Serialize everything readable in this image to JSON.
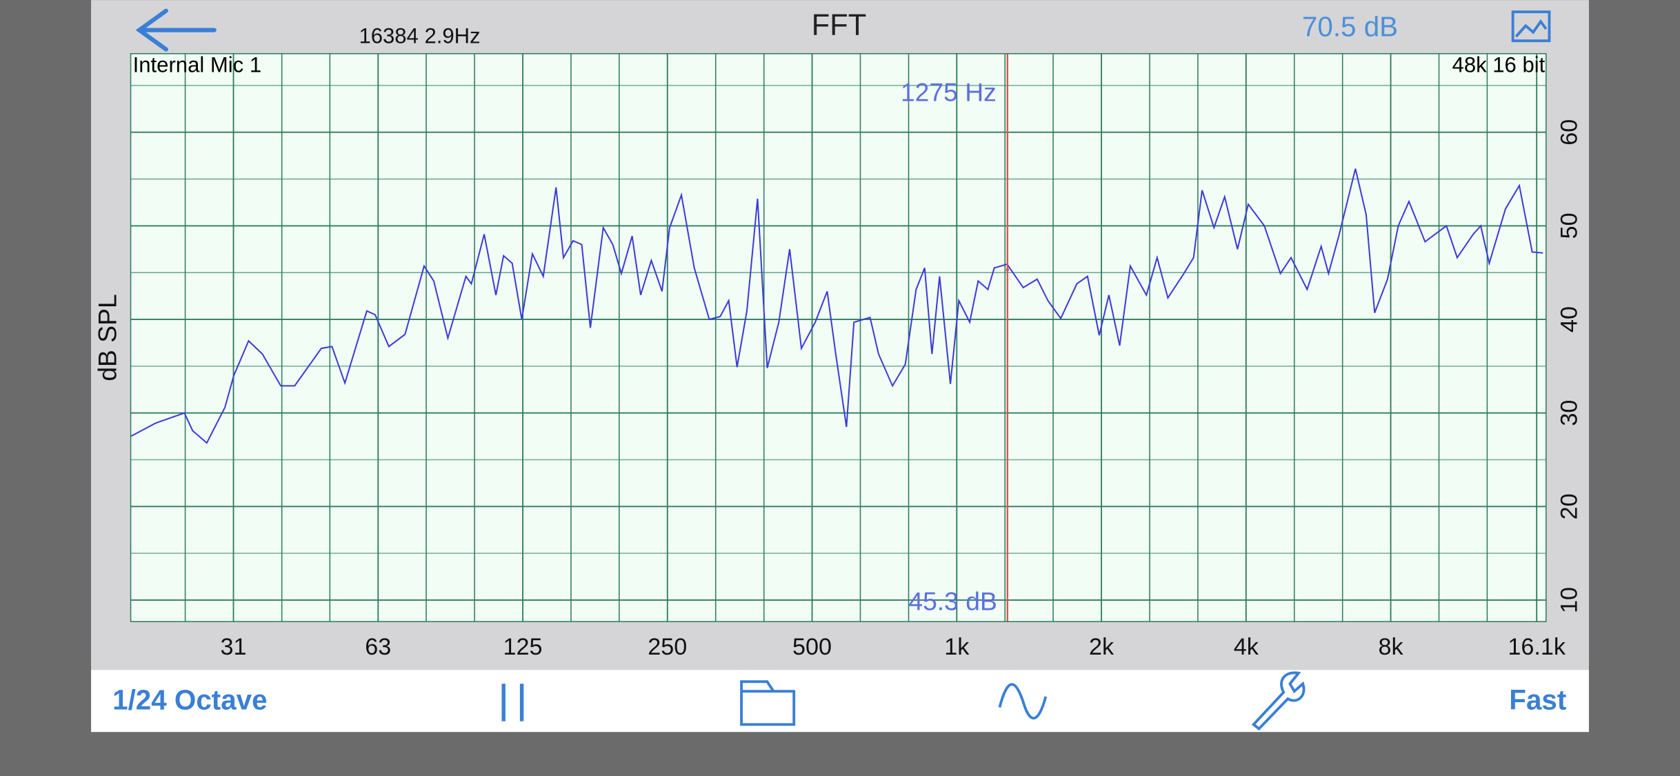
{
  "header": {
    "resolution": "16384  2.9Hz",
    "title": "FFT",
    "level": "70.5 dB"
  },
  "chart_data": {
    "type": "line",
    "input": "Internal Mic 1",
    "format": "48k 16 bit",
    "ylabel": "dB SPL",
    "log_x": true,
    "grid": true,
    "xlim": [
      19.1,
      16840
    ],
    "ylim": [
      7.7,
      68.4
    ],
    "xticks": [
      {
        "value": 31.25,
        "label": "31"
      },
      {
        "value": 62.5,
        "label": "63"
      },
      125,
      250,
      500,
      {
        "value": 1000,
        "label": "1k"
      },
      {
        "value": 2000,
        "label": "2k"
      },
      {
        "value": 4000,
        "label": "4k"
      },
      {
        "value": 8000,
        "label": "8k"
      },
      {
        "value": 16100,
        "label": "16.1k"
      }
    ],
    "xgrid": [
      24.8,
      39.4,
      49.6,
      78.7,
      99.2,
      157.5,
      198.4,
      315,
      397,
      630,
      794,
      1260,
      1587,
      2520,
      3175,
      5040,
      6350,
      10080,
      12700
    ],
    "yticks": [
      10,
      20,
      30,
      40,
      50,
      60
    ],
    "ygrid": [
      15,
      25,
      35,
      45,
      55,
      65
    ],
    "x": [
      19.1,
      21.5,
      24.7,
      25.7,
      27.5,
      30.0,
      31.3,
      33.6,
      35.9,
      39.2,
      41.9,
      47.6,
      50.1,
      53.3,
      59.2,
      61.6,
      65.8,
      71.1,
      77.9,
      81.6,
      87.3,
      95.2,
      97.7,
      103.9,
      109.9,
      114.0,
      118.8,
      124.4,
      130.9,
      137.9,
      146.6,
      151.9,
      159.1,
      165.8,
      172.8,
      183.8,
      192.4,
      200.5,
      211.1,
      219.9,
      231.4,
      243.6,
      252.6,
      267.3,
      284.3,
      305.5,
      321.8,
      335.3,
      349.0,
      365.8,
      385.0,
      403.3,
      426.3,
      449.0,
      475.0,
      507.6,
      537.5,
      560.0,
      589.5,
      611.0,
      660.0,
      687.5,
      735.0,
      781.5,
      823.0,
      857.5,
      888.0,
      921,
      970,
      1010,
      1064,
      1108,
      1161,
      1197,
      1273,
      1375,
      1470,
      1548,
      1646,
      1778,
      1871,
      1979,
      2073,
      2183,
      2297,
      2481,
      2612,
      2750,
      2969,
      3110,
      3240,
      3430,
      3610,
      3839,
      4042,
      4366,
      4715,
      4962,
      5360,
      5732,
      5938,
      6251,
      6755,
      7111,
      7407,
      7878,
      8294,
      8731,
      9430,
      10446,
      11000,
      11876,
      12312,
      12826,
      13862,
      14813,
      15757,
      16590
    ],
    "series": [
      {
        "color": "#3b3bd6",
        "values": [
          27.5,
          28.9,
          30.0,
          28.1,
          26.8,
          30.6,
          34.0,
          37.7,
          36.3,
          32.9,
          32.9,
          36.9,
          37.1,
          33.2,
          40.9,
          40.5,
          37.1,
          38.4,
          45.7,
          44.1,
          38.0,
          44.6,
          43.8,
          49.1,
          42.6,
          46.8,
          46.0,
          40.0,
          47.0,
          44.6,
          54.1,
          46.6,
          48.4,
          48.0,
          39.1,
          49.8,
          48.0,
          44.9,
          48.9,
          42.6,
          46.3,
          43.0,
          49.8,
          53.3,
          45.5,
          40.0,
          40.3,
          42.0,
          34.9,
          40.9,
          52.9,
          34.8,
          39.7,
          47.5,
          36.9,
          39.7,
          43.0,
          36.3,
          28.5,
          39.7,
          40.2,
          36.3,
          32.9,
          35.2,
          43.2,
          45.5,
          36.3,
          44.6,
          33.1,
          42.0,
          39.7,
          44.1,
          43.2,
          45.5,
          45.9,
          43.4,
          44.3,
          42.0,
          40.1,
          43.8,
          44.6,
          38.3,
          42.6,
          37.2,
          45.7,
          42.6,
          46.6,
          42.3,
          44.9,
          46.6,
          53.8,
          49.8,
          53.1,
          47.5,
          52.3,
          50.0,
          44.9,
          46.6,
          43.2,
          47.8,
          44.9,
          49.1,
          56.1,
          51.2,
          40.7,
          44.3,
          50.0,
          52.6,
          48.3,
          50.0,
          46.6,
          49.1,
          50.0,
          46.0,
          51.8,
          54.3,
          47.2,
          47.1
        ]
      }
    ],
    "cursor": {
      "x": 1275,
      "x_label": "1275 Hz",
      "value": 45.3,
      "value_label": "45.3 dB",
      "color": "#d9534f"
    }
  },
  "toolbar": {
    "resolution": "1/24 Octave",
    "speed": "Fast"
  }
}
